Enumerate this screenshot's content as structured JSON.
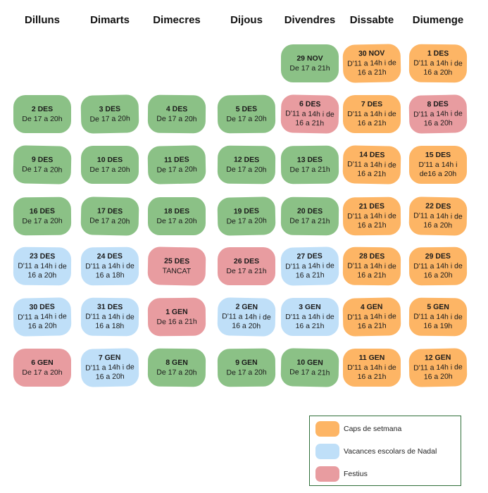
{
  "days": [
    "Dilluns",
    "Dimarts",
    "Dimecres",
    "Dijous",
    "Divendres",
    "Dissabte",
    "Diumenge"
  ],
  "colors": {
    "green": "#8bc186",
    "orange": "#fdb565",
    "blue": "#bfdff8",
    "red": "#e89ca0"
  },
  "weeks": [
    [
      null,
      null,
      null,
      null,
      {
        "date": "29 NOV",
        "hours": "De 17 a 21h",
        "color": "green"
      },
      {
        "date": "30 NOV",
        "hours": "D'11 a 14h i de 16 a 21h",
        "color": "orange"
      },
      {
        "date": "1 DES",
        "hours": "D'11 a 14h i de 16 a 20h",
        "color": "orange"
      }
    ],
    [
      {
        "date": "2 DES",
        "hours": "De 17 a 20h",
        "color": "green"
      },
      {
        "date": "3 DES",
        "hours": "De 17 a 20h",
        "color": "green"
      },
      {
        "date": "4 DES",
        "hours": "De 17 a 20h",
        "color": "green"
      },
      {
        "date": "5 DES",
        "hours": "De 17 a 20h",
        "color": "green"
      },
      {
        "date": "6 DES",
        "hours": "D'11 a 14h i de 16 a 21h",
        "color": "red"
      },
      {
        "date": "7 DES",
        "hours": "D'11 a 14h i de 16 a 21h",
        "color": "orange"
      },
      {
        "date": "8 DES",
        "hours": "D'11 a 14h i de 16 a 20h",
        "color": "red"
      }
    ],
    [
      {
        "date": "9 DES",
        "hours": "De 17 a 20h",
        "color": "green"
      },
      {
        "date": "10 DES",
        "hours": "De 17 a 20h",
        "color": "green"
      },
      {
        "date": "11 DES",
        "hours": "De 17 a 20h",
        "color": "green"
      },
      {
        "date": "12 DES",
        "hours": "De 17 a 20h",
        "color": "green"
      },
      {
        "date": "13 DES",
        "hours": "De 17 a 21h",
        "color": "green"
      },
      {
        "date": "14 DES",
        "hours": "D'11 a 14h i de 16 a 21h",
        "color": "orange"
      },
      {
        "date": "15 DES",
        "hours": "D'11 a 14h i de16 a 20h",
        "color": "orange"
      }
    ],
    [
      {
        "date": "16 DES",
        "hours": "De 17 a 20h",
        "color": "green"
      },
      {
        "date": "17 DES",
        "hours": "De 17 a 20h",
        "color": "green"
      },
      {
        "date": "18 DES",
        "hours": "De 17 a 20h",
        "color": "green"
      },
      {
        "date": "19 DES",
        "hours": "De 17 a 20h",
        "color": "green"
      },
      {
        "date": "20 DES",
        "hours": "De 17 a 21h",
        "color": "green"
      },
      {
        "date": "21 DES",
        "hours": "D'11 a 14h i de 16 a 21h",
        "color": "orange"
      },
      {
        "date": "22 DES",
        "hours": "D'11 a 14h i de 16 a 20h",
        "color": "orange"
      }
    ],
    [
      {
        "date": "23 DES",
        "hours": "D'11 a 14h i de 16 a 20h",
        "color": "blue"
      },
      {
        "date": "24 DES",
        "hours": "D'11 a 14h i de 16 a 18h",
        "color": "blue"
      },
      {
        "date": "25 DES",
        "hours": "TANCAT",
        "color": "red"
      },
      {
        "date": "26 DES",
        "hours": "De 17 a 21h",
        "color": "red"
      },
      {
        "date": "27 DES",
        "hours": "D'11 a 14h i de 16 a 21h",
        "color": "blue"
      },
      {
        "date": "28 DES",
        "hours": "D'11 a 14h i de 16 a 21h",
        "color": "orange"
      },
      {
        "date": "29 DES",
        "hours": "D'11 a 14h i de 16 a 20h",
        "color": "orange"
      }
    ],
    [
      {
        "date": "30 DES",
        "hours": "D'11 a 14h i de 16 a 20h",
        "color": "blue"
      },
      {
        "date": "31 DES",
        "hours": "D'11 a 14h i de 16 a 18h",
        "color": "blue"
      },
      {
        "date": "1 GEN",
        "hours": "De 16 a 21h",
        "color": "red"
      },
      {
        "date": "2 GEN",
        "hours": "D'11 a 14h i de 16 a 20h",
        "color": "blue"
      },
      {
        "date": "3 GEN",
        "hours": "D'11 a 14h i de 16 a 21h",
        "color": "blue"
      },
      {
        "date": "4 GEN",
        "hours": "D'11 a 14h i de 16 a 21h",
        "color": "orange"
      },
      {
        "date": "5 GEN",
        "hours": "D'11 a 14h i de 16 a 19h",
        "color": "orange"
      }
    ],
    [
      {
        "date": "6 GEN",
        "hours": "De 17 a 20h",
        "color": "red"
      },
      {
        "date": "7 GEN",
        "hours": "D'11 a 14h i de 16 a 20h",
        "color": "blue"
      },
      {
        "date": "8 GEN",
        "hours": "De 17 a 20h",
        "color": "green"
      },
      {
        "date": "9 GEN",
        "hours": "De 17 a 20h",
        "color": "green"
      },
      {
        "date": "10 GEN",
        "hours": "De 17 a 21h",
        "color": "green"
      },
      {
        "date": "11 GEN",
        "hours": "D'11 a 14h i de 16 a 21h",
        "color": "orange"
      },
      {
        "date": "12 GEN",
        "hours": "D'11 a 14h i de 16 a 20h",
        "color": "orange"
      }
    ]
  ],
  "legend": [
    {
      "label": "Caps de setmana",
      "color": "orange"
    },
    {
      "label": "Vacances escolars de Nadal",
      "color": "blue"
    },
    {
      "label": "Festius",
      "color": "red"
    }
  ]
}
